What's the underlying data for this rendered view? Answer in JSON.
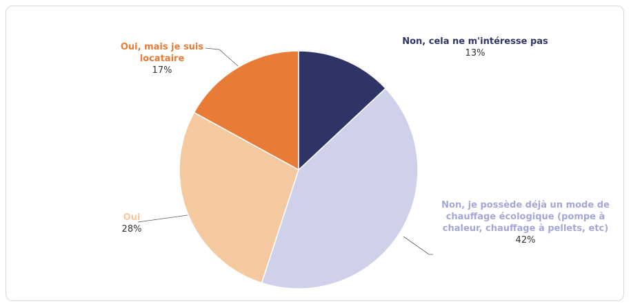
{
  "chart_data": {
    "type": "pie",
    "categories": [
      "Non, cela ne m'intéresse pas",
      "Non, je possède déjà un mode de chauffage écologique (pompe à chaleur, chauffage à pellets, etc)",
      "Oui",
      "Oui, mais je suis locataire"
    ],
    "values": [
      13,
      42,
      28,
      17
    ],
    "value_labels": [
      "13%",
      "42%",
      "28%",
      "17%"
    ],
    "colors": [
      "#2e3466",
      "#cfd1ea",
      "#f5c9a0",
      "#e87b35"
    ],
    "label_colors": [
      "#2e3466",
      "#a3a7d8",
      "#f5c9a0",
      "#e87b35"
    ]
  }
}
